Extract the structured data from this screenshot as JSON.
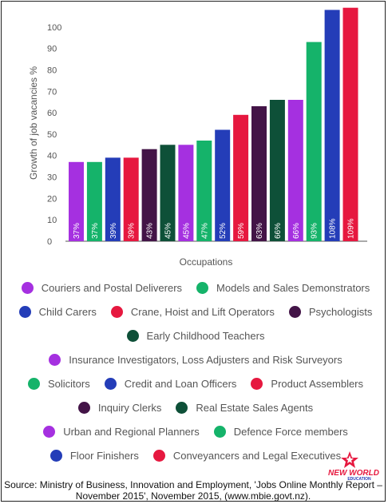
{
  "colors": {
    "purple": "#a530e0",
    "green": "#15b36a",
    "blue": "#243db8",
    "red": "#e6183f",
    "plum": "#431447",
    "darkgreen": "#0e5038"
  },
  "chart_data": {
    "type": "bar",
    "title": "",
    "xlabel": "Occupations",
    "ylabel": "Growth of job vacancies %",
    "ylim": [
      0,
      110
    ],
    "yticks": [
      0,
      10,
      20,
      30,
      40,
      50,
      60,
      70,
      80,
      90,
      100
    ],
    "grid": false,
    "legend_placement": "bottom",
    "categories": [
      "Couriers and Postal Deliverers",
      "Models and Sales Demonstrators",
      "Child Carers",
      "Crane, Hoist and Lift Operators",
      "Psychologists",
      "Early Childhood Teachers",
      "Insurance Investigators, Loss Adjusters and Risk Surveyors",
      "Solicitors",
      "Credit and Loan Officers",
      "Product Assemblers",
      "Inquiry Clerks",
      "Real Estate Sales Agents",
      "Urban and Regional Planners",
      "Defence Force members",
      "Floor Finishers",
      "Conveyancers and Legal Executives"
    ],
    "values": [
      37,
      37,
      39,
      39,
      43,
      45,
      45,
      47,
      52,
      59,
      63,
      66,
      66,
      93,
      108,
      109
    ],
    "labels": [
      "37%",
      "37%",
      "39%",
      "39%",
      "43%",
      "45%",
      "45%",
      "47%",
      "52%",
      "59%",
      "63%",
      "66%",
      "66%",
      "93%",
      "108%",
      "109%"
    ],
    "bar_colors": [
      "#a530e0",
      "#15b36a",
      "#243db8",
      "#e6183f",
      "#431447",
      "#0e5038",
      "#a530e0",
      "#15b36a",
      "#243db8",
      "#e6183f",
      "#431447",
      "#0e5038",
      "#a530e0",
      "#15b36a",
      "#243db8",
      "#e6183f"
    ]
  },
  "legend_rows": [
    [
      {
        "label": "Couriers and Postal Deliverers",
        "color": "#a530e0"
      },
      {
        "label": "Models and Sales Demonstrators",
        "color": "#15b36a"
      }
    ],
    [
      {
        "label": "Child Carers",
        "color": "#243db8"
      },
      {
        "label": "Crane, Hoist and Lift Operators",
        "color": "#e6183f"
      },
      {
        "label": "Psychologists",
        "color": "#431447"
      }
    ],
    [
      {
        "label": "Early Childhood Teachers",
        "color": "#0e5038"
      }
    ],
    [
      {
        "label": "Insurance Investigators, Loss Adjusters and Risk Surveyors",
        "color": "#a530e0"
      }
    ],
    [
      {
        "label": "Solicitors",
        "color": "#15b36a"
      },
      {
        "label": "Credit and Loan Officers",
        "color": "#243db8"
      },
      {
        "label": "Product Assemblers",
        "color": "#e6183f"
      }
    ],
    [
      {
        "label": "Inquiry Clerks",
        "color": "#431447"
      },
      {
        "label": "Real Estate Sales Agents",
        "color": "#0e5038"
      }
    ],
    [
      {
        "label": "Urban and Regional Planners",
        "color": "#a530e0"
      },
      {
        "label": "Defence Force members",
        "color": "#15b36a"
      }
    ],
    [
      {
        "label": "Floor Finishers",
        "color": "#243db8"
      },
      {
        "label": "Conveyancers and Legal Executives",
        "color": "#e6183f"
      }
    ]
  ],
  "source": "Source: Ministry of Business, Innovation and Employment, 'Jobs Online Monthly Report – November 2015', November 2015, (www.mbie.govt.nz).",
  "logo": {
    "line1": "NEW WORLD",
    "line2": "EDUCATION"
  }
}
